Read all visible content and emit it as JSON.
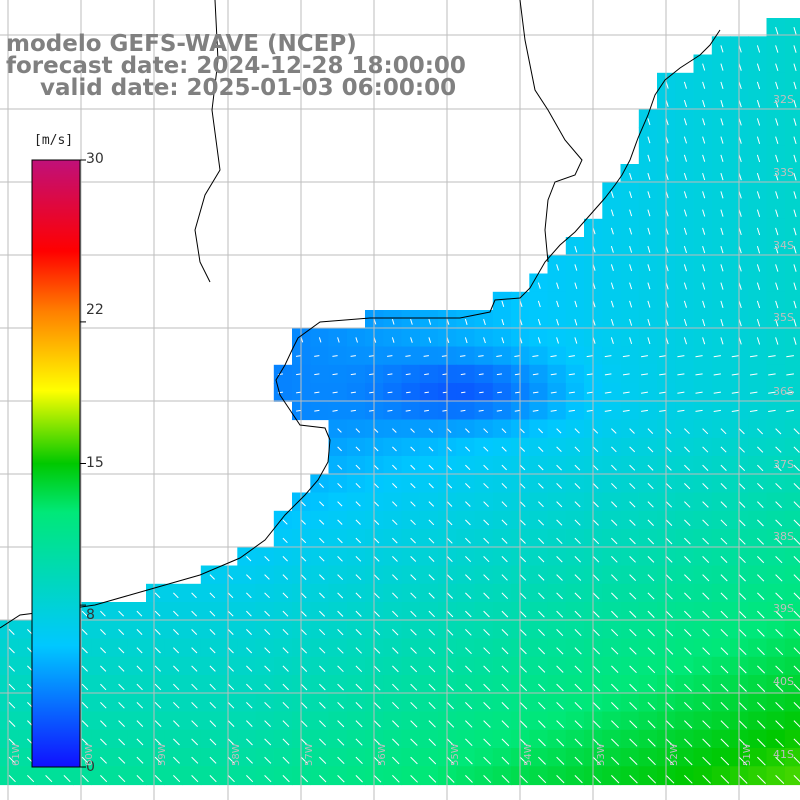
{
  "title": {
    "model": "modelo GEFS-WAVE (NCEP)",
    "forecast": "forecast date: 2024-12-28 18:00:00",
    "valid": "valid date: 2025-01-03 06:00:00"
  },
  "colorbar": {
    "unit": "[m/s]",
    "ticks": [
      "30",
      "22",
      "15",
      "8",
      "0"
    ],
    "tick_values": [
      30,
      22,
      15,
      8,
      0
    ],
    "range": [
      0,
      30
    ],
    "colors": [
      "#1010ff",
      "#00c8ff",
      "#00e878",
      "#00c800",
      "#ffff00",
      "#ff8000",
      "#ff0000",
      "#c0107a"
    ]
  },
  "axes": {
    "lat_labels": [
      "32S",
      "33S",
      "34S",
      "35S",
      "36S",
      "37S",
      "38S",
      "39S",
      "40S",
      "41S"
    ],
    "lon_labels": [
      "61W",
      "60W",
      "59W",
      "58W",
      "57W",
      "56W",
      "55W",
      "54W",
      "53W",
      "52W",
      "51W"
    ]
  },
  "colors": {
    "land": "#ffffff",
    "grid": "#bdbdbd",
    "coast": "#000000",
    "arrow": "#ffffff",
    "title_text": "#808080"
  }
}
